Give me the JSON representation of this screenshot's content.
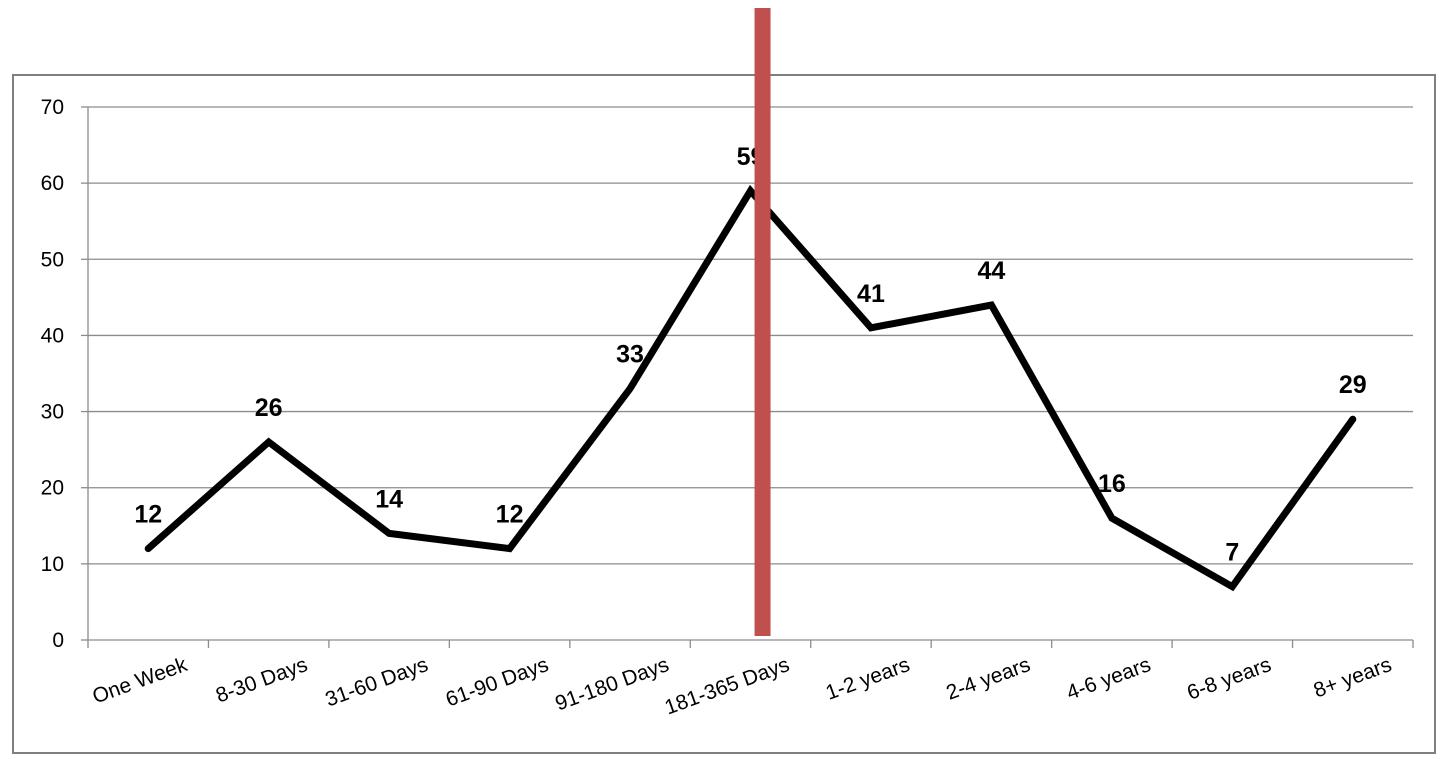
{
  "chart_data": {
    "type": "line",
    "title": "",
    "xlabel": "",
    "ylabel": "",
    "ylim": [
      0,
      70
    ],
    "y_ticks": [
      0,
      10,
      20,
      30,
      40,
      50,
      60,
      70
    ],
    "grid": "horizontal",
    "legend": "none",
    "categories": [
      "One Week",
      "8-30 Days",
      "31-60 Days",
      "61-90 Days",
      "91-180 Days",
      "181-365 Days",
      "1-2 years",
      "2-4 years",
      "4-6 years",
      "6-8 years",
      "8+ years"
    ],
    "series": [
      {
        "values": [
          12,
          26,
          14,
          12,
          33,
          59,
          41,
          44,
          16,
          7,
          29
        ],
        "color": "#000000"
      }
    ],
    "data_labels": [
      "12",
      "26",
      "14",
      "12",
      "33",
      "59",
      "41",
      "44",
      "16",
      "7",
      "29"
    ],
    "divider": {
      "position": "between 181-365 Days and 1-2 years",
      "color": "#c0504d"
    }
  }
}
